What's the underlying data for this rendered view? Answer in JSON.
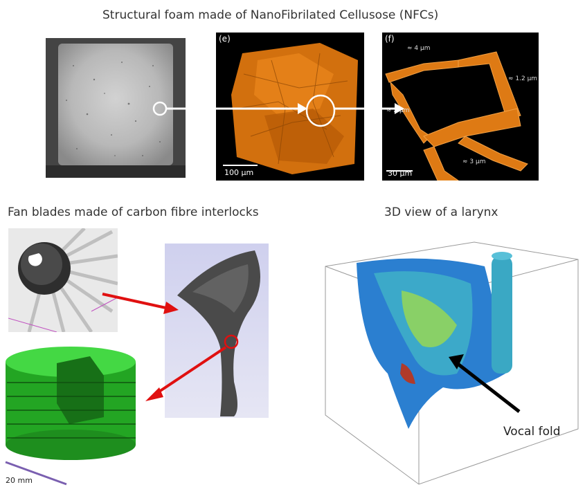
{
  "section_nfc": {
    "title": "Structural foam made of NanoFibrilated Cellusose (NFCs)",
    "panel_e_label": "(e)",
    "panel_f_label": "(f)",
    "scale_e": "100 µm",
    "scale_f": "30 µm",
    "measurements": [
      "≈ 4 µm",
      "≈ 1.2 µm",
      "≈ 2 µm",
      "≈ 3 µm"
    ]
  },
  "section_fan": {
    "title": "Fan blades made of carbon fibre interlocks",
    "scale": "20 mm"
  },
  "section_larynx": {
    "title": "3D view of a larynx",
    "annotation": "Vocal fold"
  },
  "colors": {
    "orange": "#e07a12",
    "arrow_red": "#e01010",
    "green": "#2fbf2f"
  }
}
